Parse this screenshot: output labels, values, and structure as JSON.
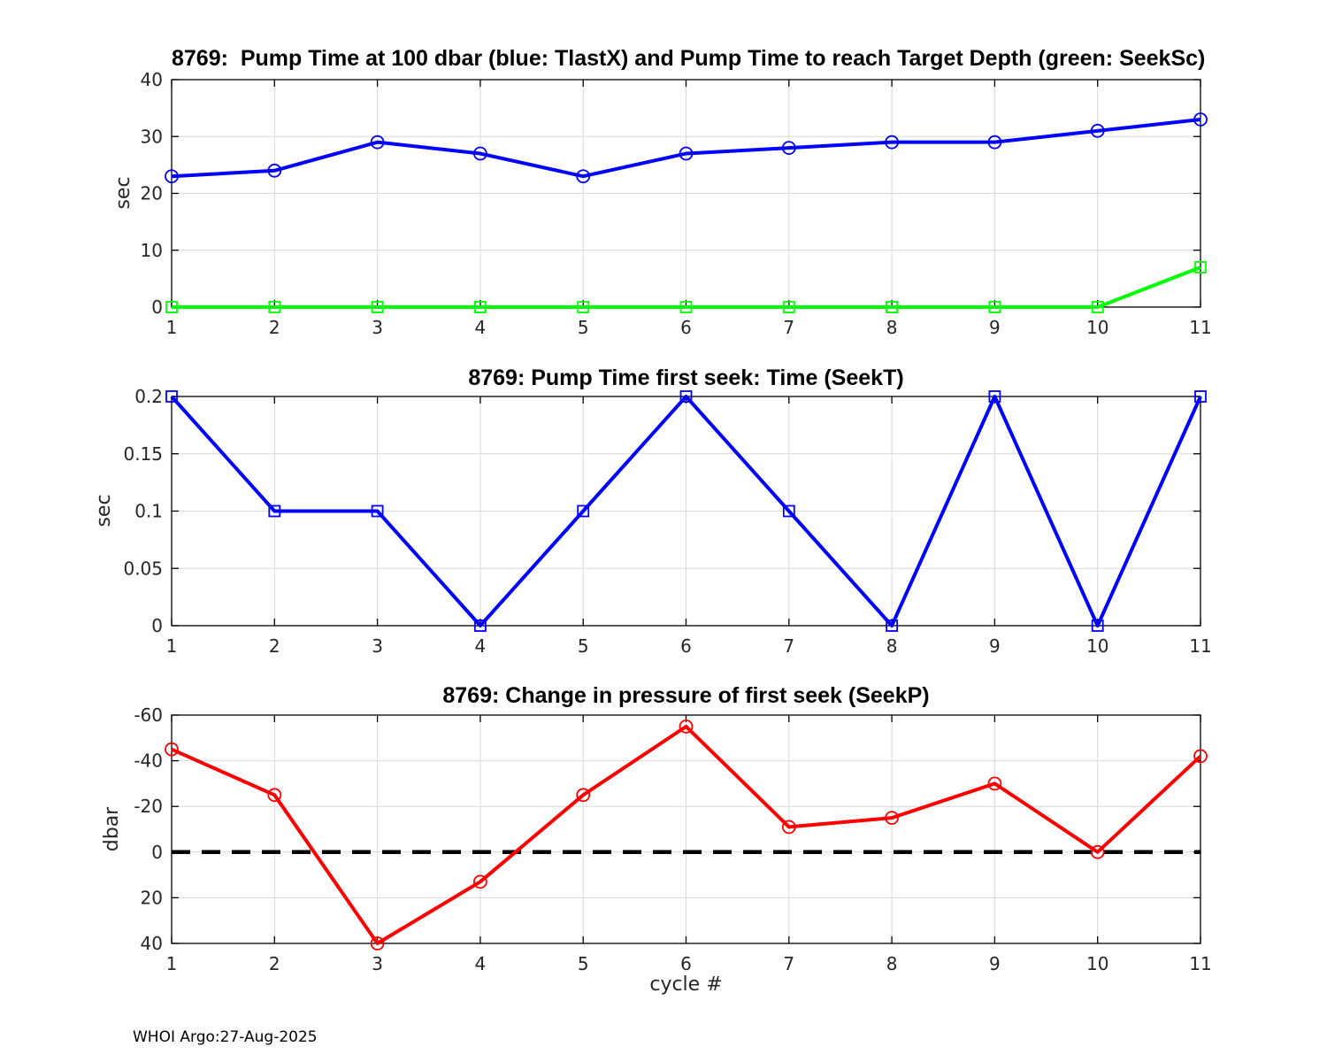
{
  "figure": {
    "footer": "WHOI Argo:27-Aug-2025",
    "background": "#ffffff",
    "float_id": "8769"
  },
  "chart_data": [
    {
      "type": "line",
      "title": "8769:  Pump Time at 100 dbar (blue: TlastX) and Pump Time to reach Target Depth (green: SeekSc)",
      "ylabel": "sec",
      "xlabel": "",
      "x": [
        1,
        2,
        3,
        4,
        5,
        6,
        7,
        8,
        9,
        10,
        11
      ],
      "xlim": [
        1,
        11
      ],
      "ylim": [
        0,
        40
      ],
      "xticks": [
        1,
        2,
        3,
        4,
        5,
        6,
        7,
        8,
        9,
        10,
        11
      ],
      "yticks": [
        0,
        10,
        20,
        30,
        40
      ],
      "grid": true,
      "legend_position": "none",
      "series": [
        {
          "name": "TlastX",
          "color": "#0000ff",
          "marker": "circle",
          "values": [
            23,
            24,
            29,
            27,
            23,
            27,
            28,
            29,
            29,
            31,
            33
          ]
        },
        {
          "name": "SeekSc",
          "color": "#00ff00",
          "marker": "square",
          "values": [
            0,
            0,
            0,
            0,
            0,
            0,
            0,
            0,
            0,
            0,
            7
          ]
        }
      ]
    },
    {
      "type": "line",
      "title": "8769: Pump Time first seek: Time (SeekT)",
      "ylabel": "sec",
      "xlabel": "",
      "x": [
        1,
        2,
        3,
        4,
        5,
        6,
        7,
        8,
        9,
        10,
        11
      ],
      "xlim": [
        1,
        11
      ],
      "ylim": [
        0,
        0.2
      ],
      "xticks": [
        1,
        2,
        3,
        4,
        5,
        6,
        7,
        8,
        9,
        10,
        11
      ],
      "yticks": [
        0,
        0.05,
        0.1,
        0.15,
        0.2
      ],
      "grid": true,
      "legend_position": "none",
      "series": [
        {
          "name": "SeekT",
          "color": "#0000ff",
          "marker": "square",
          "values": [
            0.2,
            0.1,
            0.1,
            0,
            0.1,
            0.2,
            0.1,
            0,
            0.2,
            0,
            0.2
          ]
        }
      ]
    },
    {
      "type": "line",
      "title": "8769: Change in pressure of first seek (SeekP)",
      "ylabel": "dbar",
      "xlabel": "cycle #",
      "x": [
        1,
        2,
        3,
        4,
        5,
        6,
        7,
        8,
        9,
        10,
        11
      ],
      "xlim": [
        1,
        11
      ],
      "ylim": [
        -60,
        40
      ],
      "y_axis_reversed": true,
      "xticks": [
        1,
        2,
        3,
        4,
        5,
        6,
        7,
        8,
        9,
        10,
        11
      ],
      "yticks": [
        -60,
        -40,
        -20,
        0,
        20,
        40
      ],
      "grid": true,
      "legend_position": "none",
      "zero_line": {
        "value": 0,
        "style": "dashed",
        "color": "#000000"
      },
      "series": [
        {
          "name": "SeekP",
          "color": "#ff0000",
          "marker": "circle",
          "values": [
            -45,
            -25,
            40,
            13,
            -25,
            -55,
            -11,
            -15,
            -30,
            0,
            -42
          ]
        }
      ]
    }
  ]
}
